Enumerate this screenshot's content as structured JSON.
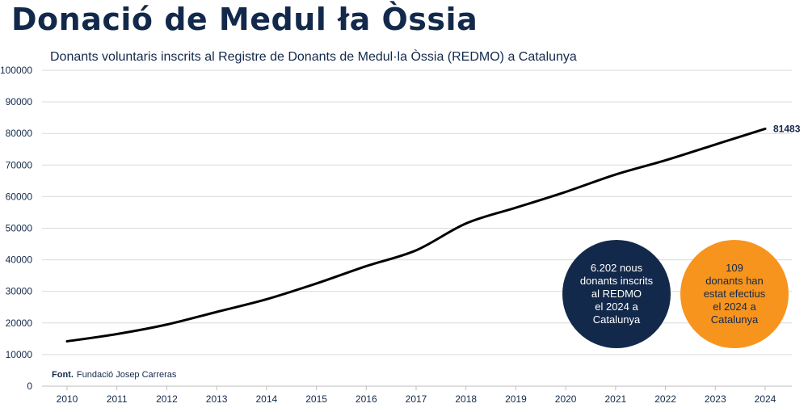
{
  "header": {
    "title": "Donació de Medul ła Òssia"
  },
  "chart_data": {
    "type": "line",
    "title": "Donants voluntaris inscrits al Registre de Donants de Medul·la Òssia (REDMO) a Catalunya",
    "xlabel": "",
    "ylabel": "",
    "categories": [
      "2010",
      "2011",
      "2012",
      "2013",
      "2014",
      "2015",
      "2016",
      "2017",
      "2018",
      "2019",
      "2020",
      "2021",
      "2022",
      "2023",
      "2024"
    ],
    "series": [
      {
        "values": [
          14200,
          16500,
          19500,
          23500,
          27500,
          32500,
          38000,
          43000,
          51500,
          56500,
          61500,
          67000,
          71500,
          76500,
          81483
        ],
        "color": "#000000"
      }
    ],
    "ylim": [
      0,
      100000
    ],
    "yticks": [
      0,
      10000,
      20000,
      30000,
      40000,
      50000,
      60000,
      70000,
      80000,
      90000,
      100000
    ],
    "ytick_labels": [
      "0",
      "10000",
      "20000",
      "30000",
      "40000",
      "50000",
      "60000",
      "70000",
      "80000",
      "90000",
      "100000"
    ],
    "last_value_label": "81483",
    "grid": true
  },
  "callouts": {
    "navy_text": "6.202 nous\ndonants inscrits\nal REDMO\nel 2024 a\nCatalunya",
    "orange_text": "109\ndonants han\nestat efectius\nel 2024 a\nCatalunya"
  },
  "source": {
    "label": "Font.",
    "text": "Fundació Josep Carreras"
  },
  "colors": {
    "title": "#13294b",
    "grid": "#d9d9d9",
    "line": "#000000",
    "navy": "#13294b",
    "orange": "#f7941d"
  }
}
